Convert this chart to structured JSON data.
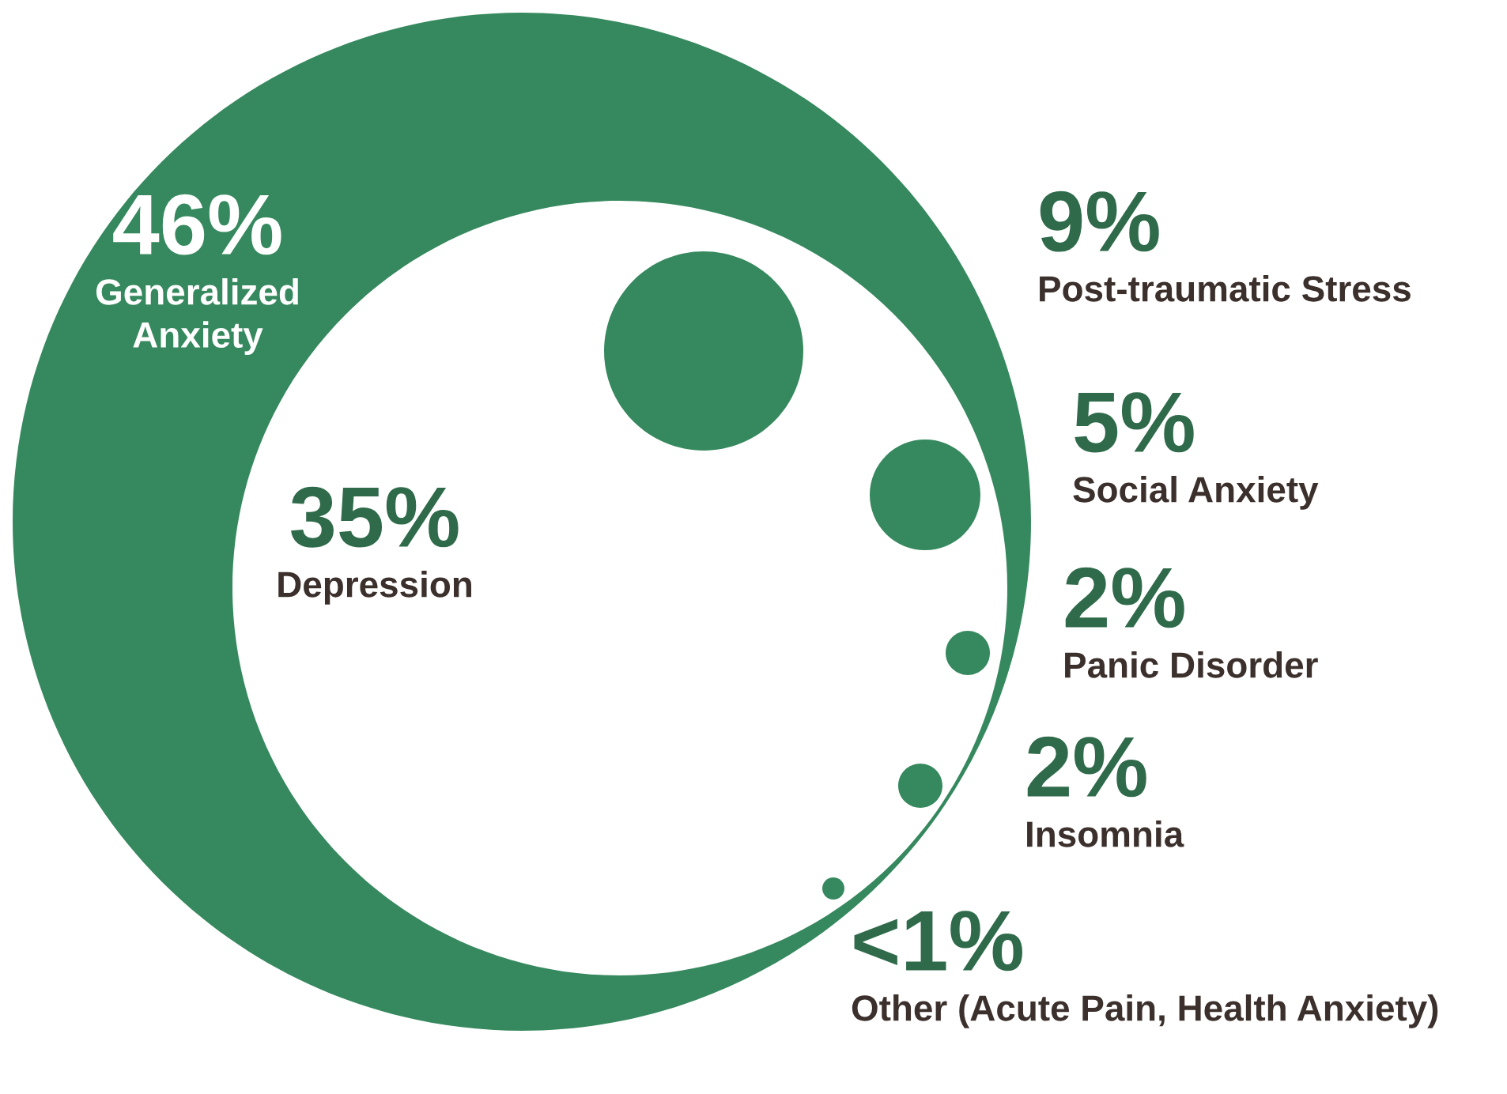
{
  "chart_data": {
    "type": "other",
    "categories": [
      "Generalized Anxiety",
      "Depression",
      "Post-traumatic Stress",
      "Social Anxiety",
      "Panic Disorder",
      "Insomnia",
      "Other (Acute Pain, Health Anxiety)"
    ],
    "values": [
      46,
      35,
      9,
      5,
      2,
      2,
      1
    ],
    "value_labels": [
      "46%",
      "35%",
      "9%",
      "5%",
      "2%",
      "2%",
      "<1%"
    ],
    "colors": [
      "#36895e",
      "#ffffff",
      "#36895e",
      "#36895e",
      "#36895e",
      "#36895e",
      "#36895e"
    ]
  }
}
